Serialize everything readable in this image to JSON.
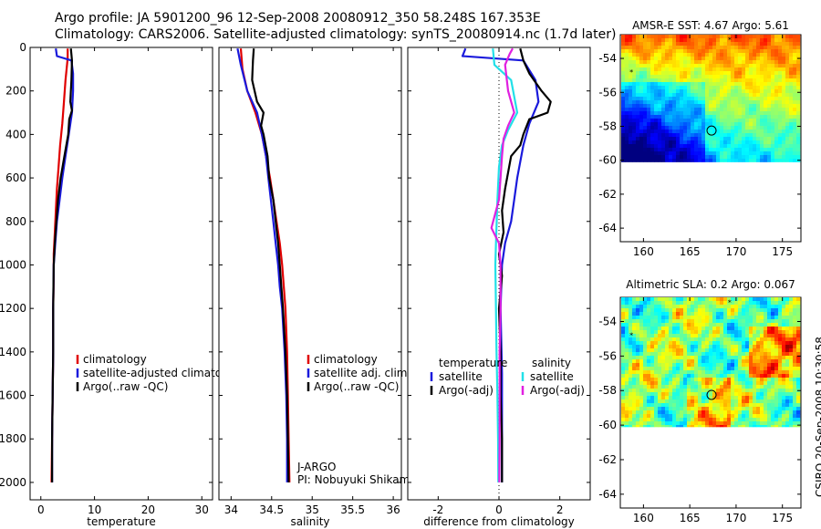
{
  "header": {
    "line1": "Argo profile: JA 5901200_96 12-Sep-2008 20080912_350 58.248S 167.353E",
    "line2": "Climatology: CARS2006. Satellite-adjusted climatology: synTS_20080914.nc (1.7d later)"
  },
  "side_label": "CSIRO 20-Sep-2008 10:30:58",
  "colors": {
    "red": "#e00000",
    "blue": "#1a1adc",
    "black": "#000000",
    "cyan": "#22e0e8",
    "magenta": "#e020e0"
  },
  "chart_data": [
    {
      "type": "line",
      "xlabel": "temperature",
      "xticks": [
        0,
        10,
        20,
        30
      ],
      "xlim": [
        -2,
        32
      ],
      "yticks": [
        0,
        200,
        400,
        600,
        800,
        1000,
        1200,
        1400,
        1600,
        1800,
        2000
      ],
      "ylim": [
        2080,
        0
      ],
      "legend": [
        {
          "label": "climatology",
          "color": "#e00000"
        },
        {
          "label": "satellite-adjusted climatolog",
          "color": "#1a1adc"
        },
        {
          "label": "Argo(..raw -QC)",
          "color": "#000000"
        }
      ],
      "legend_position": "lower-left",
      "series": [
        {
          "color": "#e00000",
          "points": [
            [
              5.0,
              5
            ],
            [
              5.0,
              50
            ],
            [
              4.6,
              150
            ],
            [
              4.3,
              250
            ],
            [
              4.0,
              350
            ],
            [
              3.6,
              450
            ],
            [
              3.3,
              550
            ],
            [
              3.0,
              650
            ],
            [
              2.8,
              750
            ],
            [
              2.6,
              850
            ],
            [
              2.4,
              950
            ],
            [
              2.4,
              1050
            ],
            [
              2.3,
              1200
            ],
            [
              2.3,
              1400
            ],
            [
              2.2,
              1600
            ],
            [
              2.1,
              1800
            ],
            [
              2.0,
              2000
            ]
          ]
        },
        {
          "color": "#1a1adc",
          "points": [
            [
              2.8,
              5
            ],
            [
              3.0,
              40
            ],
            [
              5.7,
              60
            ],
            [
              6.0,
              120
            ],
            [
              6.0,
              200
            ],
            [
              5.8,
              300
            ],
            [
              5.2,
              400
            ],
            [
              4.6,
              500
            ],
            [
              4.0,
              600
            ],
            [
              3.5,
              700
            ],
            [
              3.0,
              800
            ],
            [
              2.7,
              900
            ],
            [
              2.4,
              1000
            ],
            [
              2.3,
              1200
            ],
            [
              2.3,
              1400
            ],
            [
              2.2,
              1600
            ],
            [
              2.1,
              1800
            ],
            [
              2.1,
              2000
            ]
          ]
        },
        {
          "color": "#000000",
          "points": [
            [
              5.6,
              5
            ],
            [
              5.8,
              60
            ],
            [
              5.7,
              150
            ],
            [
              5.5,
              250
            ],
            [
              5.8,
              290
            ],
            [
              5.3,
              330
            ],
            [
              5.1,
              400
            ],
            [
              4.4,
              500
            ],
            [
              3.7,
              600
            ],
            [
              3.2,
              700
            ],
            [
              2.9,
              800
            ],
            [
              2.6,
              900
            ],
            [
              2.4,
              1000
            ],
            [
              2.3,
              1200
            ],
            [
              2.3,
              1400
            ],
            [
              2.2,
              1600
            ],
            [
              2.1,
              1800
            ],
            [
              2.1,
              2000
            ]
          ]
        }
      ]
    },
    {
      "type": "line",
      "xlabel": "salinity",
      "xticks": [
        34,
        34.5,
        35,
        35.5,
        36
      ],
      "xtick_labels": [
        "34",
        "34.5",
        "35",
        "35.5",
        "36"
      ],
      "xlim": [
        33.85,
        36.1
      ],
      "yticks": [
        0,
        200,
        400,
        600,
        800,
        1000,
        1200,
        1400,
        1600,
        1800,
        2000
      ],
      "ylim": [
        2080,
        0
      ],
      "legend": [
        {
          "label": "climatology",
          "color": "#e00000"
        },
        {
          "label": "satellite adj. clim.",
          "color": "#1a1adc"
        },
        {
          "label": "Argo(..raw -QC)",
          "color": "#000000"
        }
      ],
      "legend_position": "lower-right",
      "annotation": [
        "J-ARGO",
        "PI: Nobuyuki Shikama"
      ],
      "series": [
        {
          "color": "#e00000",
          "points": [
            [
              34.12,
              5
            ],
            [
              34.14,
              100
            ],
            [
              34.2,
              200
            ],
            [
              34.3,
              300
            ],
            [
              34.38,
              400
            ],
            [
              34.43,
              500
            ],
            [
              34.48,
              600
            ],
            [
              34.52,
              700
            ],
            [
              34.56,
              800
            ],
            [
              34.6,
              900
            ],
            [
              34.63,
              1000
            ],
            [
              34.65,
              1100
            ],
            [
              34.67,
              1200
            ],
            [
              34.69,
              1400
            ],
            [
              34.7,
              1600
            ],
            [
              34.71,
              1800
            ],
            [
              34.72,
              2000
            ]
          ]
        },
        {
          "color": "#1a1adc",
          "points": [
            [
              34.08,
              5
            ],
            [
              34.12,
              80
            ],
            [
              34.2,
              200
            ],
            [
              34.32,
              300
            ],
            [
              34.38,
              400
            ],
            [
              34.43,
              500
            ],
            [
              34.46,
              600
            ],
            [
              34.49,
              700
            ],
            [
              34.52,
              800
            ],
            [
              34.55,
              900
            ],
            [
              34.58,
              1000
            ],
            [
              34.6,
              1100
            ],
            [
              34.63,
              1200
            ],
            [
              34.66,
              1400
            ],
            [
              34.68,
              1600
            ],
            [
              34.69,
              1800
            ],
            [
              34.69,
              2000
            ]
          ]
        },
        {
          "color": "#000000",
          "points": [
            [
              34.28,
              5
            ],
            [
              34.27,
              60
            ],
            [
              34.26,
              150
            ],
            [
              34.32,
              250
            ],
            [
              34.4,
              300
            ],
            [
              34.37,
              360
            ],
            [
              34.4,
              400
            ],
            [
              34.45,
              500
            ],
            [
              34.47,
              600
            ],
            [
              34.52,
              700
            ],
            [
              34.55,
              800
            ],
            [
              34.58,
              900
            ],
            [
              34.6,
              1000
            ],
            [
              34.62,
              1100
            ],
            [
              34.64,
              1200
            ],
            [
              34.67,
              1400
            ],
            [
              34.69,
              1600
            ],
            [
              34.7,
              1800
            ],
            [
              34.71,
              2000
            ]
          ]
        }
      ]
    },
    {
      "type": "line",
      "xlabel": "difference from climatology",
      "xticks": [
        -2,
        0,
        2
      ],
      "xlim": [
        -3.0,
        3.0
      ],
      "yticks": [
        0,
        200,
        400,
        600,
        800,
        1000,
        1200,
        1400,
        1600,
        1800,
        2000
      ],
      "ylim": [
        2080,
        0
      ],
      "zero_line": true,
      "legend": [
        {
          "label": "temperature",
          "color": null,
          "group": "temperature"
        },
        {
          "label": "satellite",
          "color": "#1a1adc",
          "group": "temperature"
        },
        {
          "label": "Argo(-adj)",
          "color": "#000000",
          "group": "temperature"
        },
        {
          "label": "salinity",
          "color": null,
          "group": "salinity"
        },
        {
          "label": "satellite",
          "color": "#22e0e8",
          "group": "salinity"
        },
        {
          "label": "Argo(-adj)",
          "color": "#e020e0",
          "group": "salinity"
        }
      ],
      "legend_position": "lower-center",
      "series": [
        {
          "color": "#1a1adc",
          "points": [
            [
              -1.1,
              5
            ],
            [
              -1.2,
              40
            ],
            [
              0.8,
              60
            ],
            [
              1.2,
              150
            ],
            [
              1.3,
              250
            ],
            [
              1.0,
              350
            ],
            [
              0.8,
              450
            ],
            [
              0.6,
              600
            ],
            [
              0.5,
              700
            ],
            [
              0.4,
              800
            ],
            [
              0.2,
              900
            ],
            [
              0.1,
              1000
            ],
            [
              0.05,
              1200
            ],
            [
              0.1,
              1500
            ],
            [
              0.1,
              1800
            ],
            [
              0.1,
              2000
            ]
          ]
        },
        {
          "color": "#000000",
          "points": [
            [
              0.7,
              5
            ],
            [
              0.8,
              60
            ],
            [
              1.0,
              120
            ],
            [
              1.4,
              200
            ],
            [
              1.7,
              250
            ],
            [
              1.6,
              300
            ],
            [
              1.0,
              330
            ],
            [
              0.8,
              400
            ],
            [
              0.7,
              450
            ],
            [
              0.4,
              500
            ],
            [
              0.2,
              650
            ],
            [
              0.1,
              750
            ],
            [
              0.15,
              850
            ],
            [
              0.0,
              950
            ],
            [
              0.1,
              1050
            ],
            [
              0.0,
              1200
            ],
            [
              0.05,
              1400
            ],
            [
              0.05,
              1600
            ],
            [
              0.1,
              1800
            ],
            [
              0.1,
              2000
            ]
          ]
        },
        {
          "color": "#22e0e8",
          "points": [
            [
              -0.2,
              5
            ],
            [
              -0.15,
              80
            ],
            [
              0.4,
              150
            ],
            [
              0.6,
              300
            ],
            [
              0.3,
              380
            ],
            [
              0.1,
              450
            ],
            [
              0.0,
              550
            ],
            [
              -0.05,
              700
            ],
            [
              -0.1,
              900
            ],
            [
              -0.12,
              1000
            ],
            [
              -0.1,
              1200
            ],
            [
              -0.08,
              1400
            ],
            [
              -0.05,
              1600
            ],
            [
              -0.03,
              1800
            ],
            [
              -0.02,
              2000
            ]
          ]
        },
        {
          "color": "#e020e0",
          "points": [
            [
              0.45,
              5
            ],
            [
              0.35,
              30
            ],
            [
              0.2,
              80
            ],
            [
              0.3,
              200
            ],
            [
              0.5,
              300
            ],
            [
              0.3,
              360
            ],
            [
              0.15,
              420
            ],
            [
              0.1,
              500
            ],
            [
              0.05,
              600
            ],
            [
              0.0,
              700
            ],
            [
              -0.25,
              830
            ],
            [
              0.0,
              900
            ],
            [
              0.05,
              1000
            ],
            [
              0.05,
              1200
            ],
            [
              0.02,
              1400
            ],
            [
              0.02,
              1600
            ],
            [
              0.02,
              1800
            ],
            [
              0.01,
              2000
            ]
          ]
        }
      ]
    },
    {
      "type": "heatmap",
      "title": "AMSR-E SST: 4.67 Argo: 5.61",
      "xticks": [
        160,
        165,
        170,
        175
      ],
      "yticks": [
        -54,
        -56,
        -58,
        -60,
        -62,
        -64
      ],
      "xlim": [
        157.5,
        177
      ],
      "ylim": [
        -64.8,
        -52.6
      ],
      "data_ylim": [
        -60.1,
        -52.6
      ],
      "marker": {
        "lon": 167.35,
        "lat": -58.25
      },
      "stars": [
        {
          "lon": 169.3,
          "lat": -52.9
        },
        {
          "lon": 158.7,
          "lat": -54.8
        }
      ]
    },
    {
      "type": "heatmap",
      "title": "Altimetric SLA: 0.2 Argo: 0.067",
      "xticks": [
        160,
        165,
        170,
        175
      ],
      "yticks": [
        -54,
        -56,
        -58,
        -60,
        -62,
        -64
      ],
      "xlim": [
        157.5,
        177
      ],
      "ylim": [
        -64.8,
        -52.6
      ],
      "data_ylim": [
        -60.1,
        -52.6
      ],
      "marker": {
        "lon": 167.35,
        "lat": -58.25
      },
      "stars": [
        {
          "lon": 169.3,
          "lat": -52.9
        },
        {
          "lon": 158.7,
          "lat": -54.8
        }
      ]
    }
  ]
}
